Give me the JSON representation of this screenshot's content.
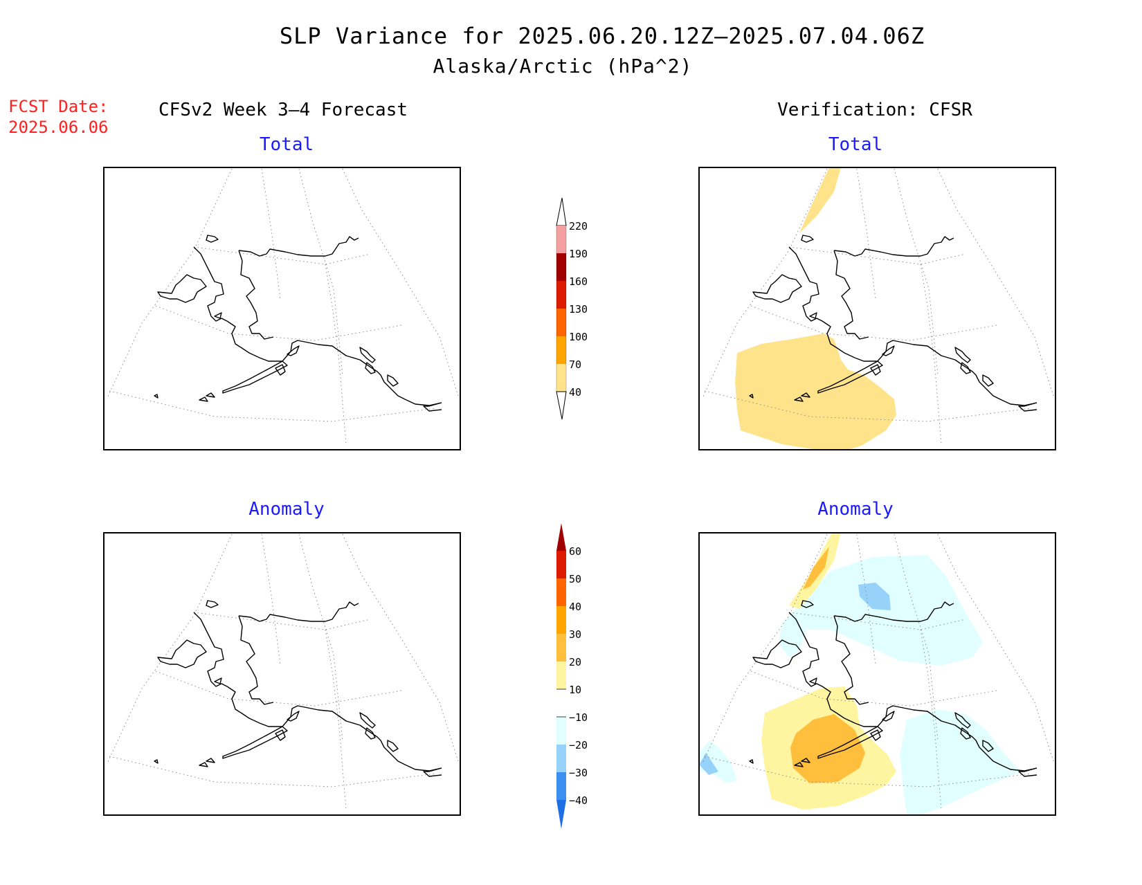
{
  "header": {
    "title": "SLP Variance for 2025.06.20.12Z–2025.07.04.06Z",
    "subtitle": "Alaska/Arctic (hPa^2)"
  },
  "fcst": {
    "line1": "FCST Date:",
    "line2": "2025.06.06"
  },
  "columns": {
    "forecast": "CFSv2 Week 3–4 Forecast",
    "verification": "Verification: CFSR"
  },
  "panels": {
    "forecast_total": {
      "title": "Total"
    },
    "verify_total": {
      "title": "Total"
    },
    "forecast_anomaly": {
      "title": "Anomaly"
    },
    "verify_anomaly": {
      "title": "Anomaly"
    }
  },
  "colors": {
    "title_blue": "#1a1aff",
    "fcst_red": "#ff2020",
    "total_scale": [
      "#fee38a",
      "#ffa500",
      "#ff8000",
      "#ff4000",
      "#dc1a00",
      "#a00000",
      "#f4a0a0",
      "#ffe6e6"
    ],
    "anomaly_scale": [
      "#1e6ee6",
      "#3c8ef0",
      "#96d2fa",
      "#e1ffff",
      "#ffffff",
      "#fff5a0",
      "#ffbe3c",
      "#ffa500",
      "#ff6400",
      "#dc1a00",
      "#a00000"
    ]
  },
  "colorbars": {
    "total": {
      "labels": [
        "220",
        "190",
        "160",
        "130",
        "100",
        "70",
        "40"
      ]
    },
    "anomaly": {
      "labels": [
        "60",
        "50",
        "40",
        "30",
        "20",
        "10",
        "−10",
        "−20",
        "−30",
        "−40"
      ]
    }
  }
}
